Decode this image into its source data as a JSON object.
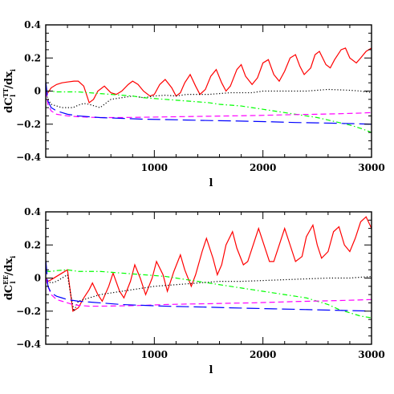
{
  "chart_data": [
    {
      "type": "line",
      "ylabel": {
        "prefix": "dC",
        "sup": "TT",
        "sub": "l",
        "suffix": "/dx",
        "sub2": "i"
      },
      "xlabel": "l",
      "xlim": [
        0,
        3000
      ],
      "ylim": [
        -0.4,
        0.4
      ],
      "xticks": [
        1000,
        2000,
        3000
      ],
      "yticks": [
        -0.4,
        -0.2,
        0,
        0.2,
        0.4
      ],
      "xtick_labels": [
        "1000",
        "2000",
        "3000"
      ],
      "ytick_labels": [
        "−0.4",
        "−0.2",
        "0",
        "0.2",
        "0.4"
      ],
      "grid": false,
      "series": [
        {
          "color": "#ff0000",
          "dash": "solid",
          "x": [
            2,
            20,
            50,
            100,
            150,
            200,
            260,
            300,
            350,
            400,
            440,
            480,
            540,
            600,
            650,
            700,
            760,
            800,
            850,
            900,
            960,
            1000,
            1050,
            1100,
            1160,
            1200,
            1240,
            1280,
            1330,
            1380,
            1420,
            1470,
            1520,
            1570,
            1620,
            1660,
            1700,
            1760,
            1800,
            1840,
            1900,
            1950,
            2000,
            2050,
            2100,
            2150,
            2200,
            2250,
            2300,
            2340,
            2380,
            2440,
            2480,
            2520,
            2580,
            2620,
            2660,
            2720,
            2760,
            2800,
            2860,
            2900,
            2950,
            3000
          ],
          "y": [
            -0.02,
            -0.01,
            0.02,
            0.04,
            0.05,
            0.055,
            0.06,
            0.06,
            0.03,
            -0.07,
            -0.05,
            0.0,
            0.03,
            -0.01,
            -0.02,
            0.0,
            0.04,
            0.06,
            0.04,
            0.0,
            -0.03,
            -0.02,
            0.04,
            0.07,
            0.02,
            -0.03,
            -0.01,
            0.05,
            0.1,
            0.03,
            -0.02,
            0.01,
            0.09,
            0.13,
            0.05,
            0.0,
            0.03,
            0.13,
            0.16,
            0.09,
            0.04,
            0.08,
            0.17,
            0.19,
            0.1,
            0.06,
            0.12,
            0.2,
            0.22,
            0.15,
            0.1,
            0.14,
            0.22,
            0.24,
            0.16,
            0.14,
            0.19,
            0.25,
            0.26,
            0.2,
            0.17,
            0.2,
            0.24,
            0.26
          ]
        },
        {
          "color": "#000000",
          "dash": "dotted",
          "x": [
            2,
            20,
            50,
            100,
            150,
            200,
            250,
            300,
            350,
            400,
            500,
            600,
            700,
            800,
            900,
            1000,
            1100,
            1200,
            1300,
            1400,
            1500,
            1600,
            1700,
            1800,
            1900,
            2000,
            2200,
            2400,
            2600,
            2800,
            2900,
            3000
          ],
          "y": [
            0.0,
            -0.05,
            -0.08,
            -0.09,
            -0.1,
            -0.1,
            -0.1,
            -0.085,
            -0.075,
            -0.08,
            -0.1,
            -0.05,
            -0.04,
            -0.03,
            -0.04,
            -0.03,
            -0.025,
            -0.03,
            -0.02,
            -0.02,
            -0.02,
            -0.015,
            -0.01,
            -0.01,
            -0.01,
            0.0,
            0.0,
            0.0,
            0.01,
            0.005,
            0.0,
            -0.01
          ]
        },
        {
          "color": "#00ff00",
          "dash": "dashdot",
          "x": [
            2,
            50,
            100,
            200,
            300,
            400,
            500,
            600,
            700,
            800,
            900,
            1000,
            1100,
            1200,
            1300,
            1400,
            1500,
            1600,
            1700,
            1800,
            1900,
            2000,
            2100,
            2200,
            2300,
            2400,
            2500,
            2600,
            2700,
            2800,
            2900,
            3000
          ],
          "y": [
            0.0,
            0.0,
            -0.005,
            -0.005,
            -0.005,
            -0.01,
            -0.015,
            -0.02,
            -0.025,
            -0.03,
            -0.04,
            -0.045,
            -0.05,
            -0.055,
            -0.06,
            -0.065,
            -0.07,
            -0.08,
            -0.085,
            -0.09,
            -0.1,
            -0.11,
            -0.12,
            -0.13,
            -0.14,
            -0.15,
            -0.16,
            -0.175,
            -0.19,
            -0.205,
            -0.225,
            -0.25
          ]
        },
        {
          "color": "#ff00ff",
          "dash": "dash",
          "x": [
            2,
            20,
            50,
            100,
            150,
            200,
            300,
            400,
            500,
            700,
            900,
            1100,
            1300,
            1500,
            1700,
            1900,
            2100,
            2300,
            2500,
            2700,
            2900,
            3000
          ],
          "y": [
            0.0,
            -0.08,
            -0.12,
            -0.14,
            -0.145,
            -0.15,
            -0.155,
            -0.158,
            -0.16,
            -0.16,
            -0.158,
            -0.156,
            -0.154,
            -0.152,
            -0.15,
            -0.148,
            -0.145,
            -0.142,
            -0.14,
            -0.137,
            -0.133,
            -0.13
          ]
        },
        {
          "color": "#0000ff",
          "dash": "longdash",
          "x": [
            2,
            20,
            50,
            100,
            150,
            200,
            300,
            400,
            500,
            700,
            900,
            1100,
            1300,
            1500,
            1700,
            1900,
            2100,
            2300,
            2500,
            2700,
            2900,
            3000
          ],
          "y": [
            0.05,
            -0.06,
            -0.1,
            -0.12,
            -0.13,
            -0.14,
            -0.15,
            -0.155,
            -0.16,
            -0.165,
            -0.17,
            -0.172,
            -0.175,
            -0.178,
            -0.18,
            -0.183,
            -0.186,
            -0.19,
            -0.192,
            -0.195,
            -0.198,
            -0.2
          ]
        }
      ]
    },
    {
      "type": "line",
      "ylabel": {
        "prefix": "dC",
        "sup": "EE",
        "sub": "l",
        "suffix": "/dx",
        "sub2": "i"
      },
      "xlabel": "l",
      "xlim": [
        0,
        3000
      ],
      "ylim": [
        -0.4,
        0.4
      ],
      "xticks": [
        1000,
        2000,
        3000
      ],
      "yticks": [
        -0.4,
        -0.2,
        0,
        0.2,
        0.4
      ],
      "xtick_labels": [
        "1000",
        "2000",
        "3000"
      ],
      "ytick_labels": [
        "−0.4",
        "−0.2",
        "0",
        "0.2",
        "0.4"
      ],
      "grid": false,
      "series": [
        {
          "color": "#ff0000",
          "dash": "solid",
          "x": [
            2,
            20,
            50,
            100,
            150,
            200,
            250,
            300,
            350,
            400,
            430,
            480,
            520,
            580,
            620,
            680,
            720,
            780,
            820,
            870,
            920,
            980,
            1020,
            1080,
            1120,
            1180,
            1240,
            1280,
            1340,
            1380,
            1440,
            1480,
            1540,
            1580,
            1620,
            1660,
            1720,
            1760,
            1820,
            1860,
            1920,
            1960,
            2000,
            2060,
            2100,
            2160,
            2200,
            2250,
            2300,
            2360,
            2400,
            2460,
            2500,
            2540,
            2600,
            2650,
            2700,
            2750,
            2800,
            2850,
            2900,
            2950,
            3000
          ],
          "y": [
            0.0,
            -0.02,
            -0.01,
            0.01,
            0.03,
            0.05,
            -0.2,
            -0.18,
            -0.12,
            -0.07,
            -0.03,
            -0.1,
            -0.14,
            -0.05,
            0.03,
            -0.08,
            -0.12,
            -0.02,
            0.08,
            0.0,
            -0.1,
            0.0,
            0.1,
            0.02,
            -0.08,
            0.04,
            0.14,
            0.05,
            -0.05,
            0.02,
            0.16,
            0.24,
            0.12,
            0.02,
            0.08,
            0.2,
            0.28,
            0.18,
            0.08,
            0.1,
            0.22,
            0.3,
            0.22,
            0.1,
            0.1,
            0.22,
            0.3,
            0.2,
            0.1,
            0.13,
            0.25,
            0.32,
            0.2,
            0.12,
            0.16,
            0.28,
            0.31,
            0.2,
            0.16,
            0.24,
            0.34,
            0.37,
            0.3
          ]
        },
        {
          "color": "#000000",
          "dash": "dotted",
          "x": [
            2,
            20,
            50,
            100,
            150,
            200,
            230,
            260,
            300,
            400,
            500,
            600,
            700,
            800,
            900,
            1000,
            1200,
            1400,
            1600,
            1800,
            2000,
            2200,
            2400,
            2600,
            2800,
            3000
          ],
          "y": [
            0.0,
            -0.02,
            -0.03,
            -0.02,
            0.0,
            0.02,
            -0.1,
            -0.2,
            -0.14,
            -0.12,
            -0.1,
            -0.09,
            -0.08,
            -0.07,
            -0.06,
            -0.05,
            -0.04,
            -0.03,
            -0.02,
            -0.02,
            -0.015,
            -0.01,
            -0.005,
            0.0,
            0.0,
            0.01
          ]
        },
        {
          "color": "#00ff00",
          "dash": "dashdot",
          "x": [
            2,
            50,
            100,
            200,
            300,
            400,
            500,
            600,
            700,
            800,
            900,
            1000,
            1100,
            1200,
            1300,
            1400,
            1500,
            1600,
            1700,
            1800,
            1900,
            2000,
            2100,
            2200,
            2300,
            2400,
            2500,
            2600,
            2700,
            2800,
            2900,
            3000
          ],
          "y": [
            0.04,
            0.04,
            0.045,
            0.05,
            0.04,
            0.04,
            0.04,
            0.035,
            0.03,
            0.025,
            0.02,
            0.015,
            0.01,
            0.0,
            -0.01,
            -0.02,
            -0.03,
            -0.04,
            -0.05,
            -0.06,
            -0.07,
            -0.08,
            -0.09,
            -0.1,
            -0.11,
            -0.12,
            -0.14,
            -0.16,
            -0.19,
            -0.21,
            -0.23,
            -0.24
          ]
        },
        {
          "color": "#ff00ff",
          "dash": "dash",
          "x": [
            2,
            20,
            50,
            100,
            150,
            200,
            250,
            300,
            400,
            500,
            700,
            900,
            1100,
            1300,
            1500,
            1700,
            1900,
            2100,
            2300,
            2500,
            2700,
            2900,
            3000
          ],
          "y": [
            0.0,
            -0.05,
            -0.1,
            -0.13,
            -0.14,
            -0.15,
            -0.16,
            -0.165,
            -0.17,
            -0.17,
            -0.168,
            -0.165,
            -0.16,
            -0.157,
            -0.155,
            -0.152,
            -0.15,
            -0.146,
            -0.142,
            -0.139,
            -0.136,
            -0.132,
            -0.13
          ]
        },
        {
          "color": "#0000ff",
          "dash": "longdash",
          "x": [
            2,
            20,
            50,
            100,
            150,
            200,
            300,
            400,
            500,
            700,
            900,
            1100,
            1300,
            1500,
            1700,
            1900,
            2100,
            2300,
            2500,
            2700,
            2900,
            3000
          ],
          "y": [
            0.1,
            -0.05,
            -0.09,
            -0.11,
            -0.12,
            -0.13,
            -0.14,
            -0.145,
            -0.15,
            -0.16,
            -0.165,
            -0.17,
            -0.173,
            -0.176,
            -0.18,
            -0.183,
            -0.186,
            -0.189,
            -0.192,
            -0.195,
            -0.198,
            -0.2
          ]
        }
      ]
    }
  ]
}
